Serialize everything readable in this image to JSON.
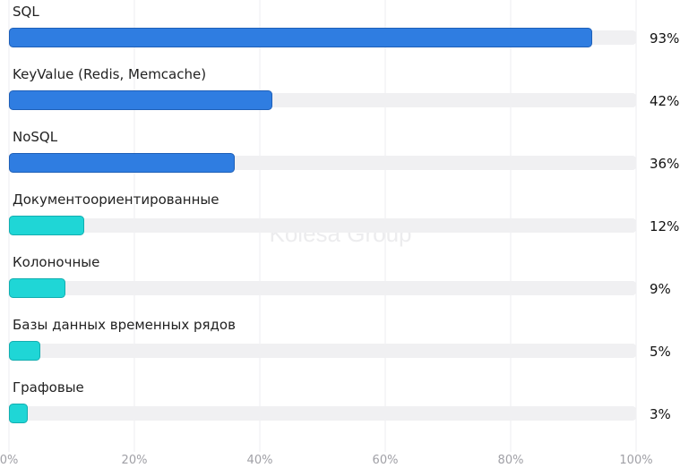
{
  "watermark": "Kolesa Group",
  "chart_data": {
    "type": "bar",
    "orientation": "horizontal",
    "categories": [
      "SQL",
      "KeyValue (Redis, Memcache)",
      "NoSQL",
      "Документоориентированные",
      "Колоночные",
      "Базы данных временных рядов",
      "Графовые"
    ],
    "values": [
      93,
      42,
      36,
      12,
      9,
      5,
      3
    ],
    "value_labels": [
      "93%",
      "42%",
      "36%",
      "12%",
      "9%",
      "5%",
      "3%"
    ],
    "bar_colors": [
      "#2f7de1",
      "#2f7de1",
      "#2f7de1",
      "#1fd6d6",
      "#1fd6d6",
      "#1fd6d6",
      "#1fd6d6"
    ],
    "track_color": "#f0f0f2",
    "xlim": [
      0,
      100
    ],
    "xticks": [
      "0%",
      "20%",
      "40%",
      "60%",
      "80%",
      "100%"
    ],
    "grid": true,
    "title": "",
    "xlabel": "",
    "ylabel": ""
  }
}
